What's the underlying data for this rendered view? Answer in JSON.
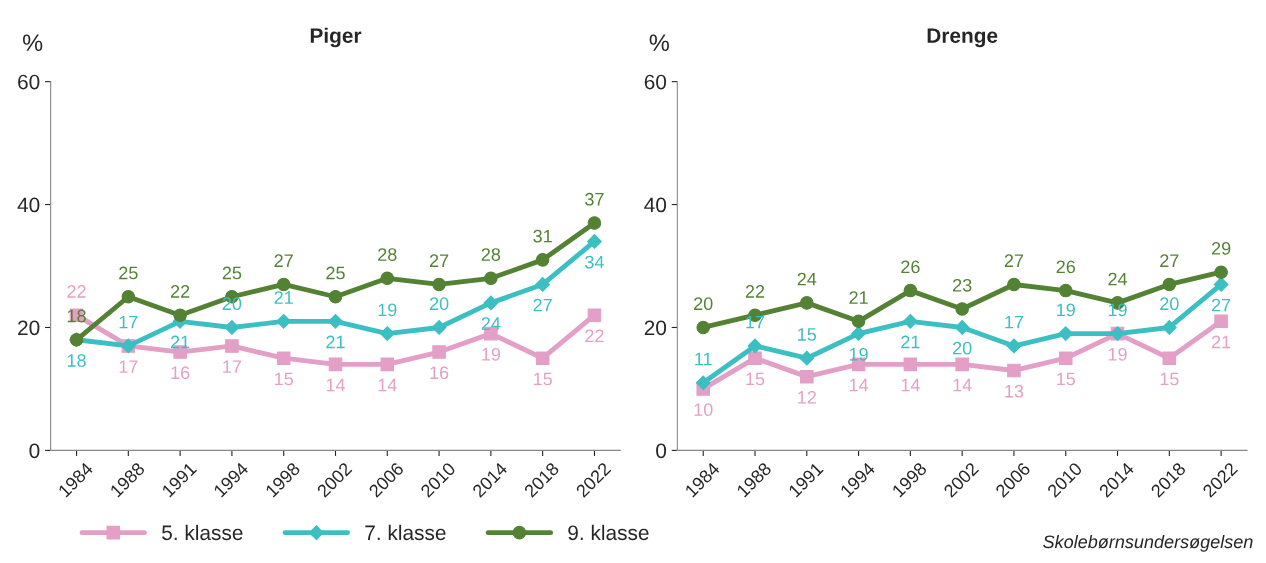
{
  "chart_data": [
    {
      "type": "line",
      "title": "Piger",
      "ylabel": "%",
      "categories": [
        "1984",
        "1988",
        "1991",
        "1994",
        "1998",
        "2002",
        "2006",
        "2010",
        "2014",
        "2018",
        "2022"
      ],
      "ylim": [
        0,
        60
      ],
      "yticks": [
        0,
        20,
        40,
        60
      ],
      "grid": false,
      "legend": "bottom",
      "data_labels": true,
      "series": [
        {
          "name": "5. klasse",
          "color": "#e39fc6",
          "marker": "square",
          "values": [
            22,
            17,
            16,
            17,
            15,
            14,
            14,
            16,
            19,
            15,
            22
          ]
        },
        {
          "name": "7. klasse",
          "color": "#3bbfc3",
          "marker": "diamond",
          "values": [
            18,
            17,
            21,
            20,
            21,
            21,
            19,
            20,
            24,
            27,
            34
          ]
        },
        {
          "name": "9. klasse",
          "color": "#548235",
          "marker": "circle",
          "values": [
            18,
            25,
            22,
            25,
            27,
            25,
            28,
            27,
            28,
            31,
            37
          ]
        }
      ]
    },
    {
      "type": "line",
      "title": "Drenge",
      "ylabel": "%",
      "categories": [
        "1984",
        "1988",
        "1991",
        "1994",
        "1998",
        "2002",
        "2006",
        "2010",
        "2014",
        "2018",
        "2022"
      ],
      "ylim": [
        0,
        60
      ],
      "yticks": [
        0,
        20,
        40,
        60
      ],
      "grid": false,
      "data_labels": true,
      "annotations": [
        "Skolebørnsundersøgelsen"
      ],
      "series": [
        {
          "color": "#e39fc6",
          "marker": "square",
          "values": [
            10,
            15,
            12,
            14,
            14,
            14,
            13,
            15,
            19,
            15,
            21
          ]
        },
        {
          "color": "#3bbfc3",
          "marker": "diamond",
          "values": [
            11,
            17,
            15,
            19,
            21,
            20,
            17,
            19,
            19,
            20,
            27
          ]
        },
        {
          "color": "#548235",
          "marker": "circle",
          "values": [
            20,
            22,
            24,
            21,
            26,
            23,
            27,
            26,
            24,
            27,
            29
          ]
        }
      ]
    }
  ]
}
